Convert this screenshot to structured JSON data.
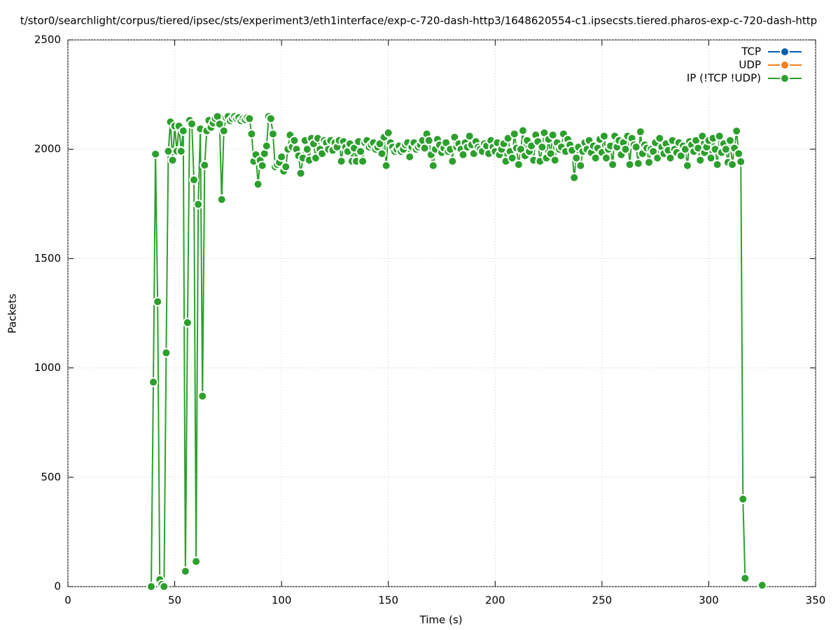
{
  "chart_data": {
    "type": "line",
    "title": "t/stor0/searchlight/corpus/tiered/ipsec/sts/experiment3/eth1interface/exp-c-720-dash-http3/1648620554-c1.ipsecsts.tiered.pharos-exp-c-720-dash-http",
    "x_label": "Time (s)",
    "y_label": "Packets",
    "xlim": [
      0,
      350
    ],
    "xticks": [
      0,
      50,
      100,
      150,
      200,
      250,
      300,
      350
    ],
    "ylim": [
      0,
      2500
    ],
    "yticks": [
      0,
      500,
      1000,
      1500,
      2000,
      2500
    ],
    "grid": true,
    "legend": "top-right",
    "x": [
      39,
      40,
      41,
      42,
      43,
      44,
      45,
      46,
      47,
      48,
      49,
      50,
      51,
      52,
      53,
      54,
      55,
      56,
      57,
      58,
      59,
      60,
      61,
      62,
      63,
      64,
      65,
      66,
      67,
      68,
      69,
      70,
      71,
      72,
      73,
      74,
      75,
      76,
      77,
      78,
      79,
      80,
      81,
      82,
      83,
      84,
      85,
      86,
      87,
      88,
      89,
      90,
      91,
      92,
      93,
      94,
      95,
      96,
      97,
      98,
      99,
      100,
      101,
      102,
      103,
      104,
      105,
      106,
      107,
      108,
      109,
      110,
      111,
      112,
      113,
      114,
      115,
      116,
      117,
      118,
      119,
      120,
      121,
      122,
      123,
      124,
      125,
      126,
      127,
      128,
      129,
      130,
      131,
      132,
      133,
      134,
      135,
      136,
      137,
      138,
      139,
      140,
      141,
      142,
      143,
      144,
      145,
      146,
      147,
      148,
      149,
      150,
      151,
      152,
      153,
      154,
      155,
      156,
      157,
      158,
      159,
      160,
      161,
      162,
      163,
      164,
      165,
      166,
      167,
      168,
      169,
      170,
      171,
      172,
      173,
      174,
      175,
      176,
      177,
      178,
      179,
      180,
      181,
      182,
      183,
      184,
      185,
      186,
      187,
      188,
      189,
      190,
      191,
      192,
      193,
      194,
      195,
      196,
      197,
      198,
      199,
      200,
      201,
      202,
      203,
      204,
      205,
      206,
      207,
      208,
      209,
      210,
      211,
      212,
      213,
      214,
      215,
      216,
      217,
      218,
      219,
      220,
      221,
      222,
      223,
      224,
      225,
      226,
      227,
      228,
      229,
      230,
      231,
      232,
      233,
      234,
      235,
      236,
      237,
      238,
      239,
      240,
      241,
      242,
      243,
      244,
      245,
      246,
      247,
      248,
      249,
      250,
      251,
      252,
      253,
      254,
      255,
      256,
      257,
      258,
      259,
      260,
      261,
      262,
      263,
      264,
      265,
      266,
      267,
      268,
      269,
      270,
      271,
      272,
      273,
      274,
      275,
      276,
      277,
      278,
      279,
      280,
      281,
      282,
      283,
      284,
      285,
      286,
      287,
      288,
      289,
      290,
      291,
      292,
      293,
      294,
      295,
      296,
      297,
      298,
      299,
      300,
      301,
      302,
      303,
      304,
      305,
      306,
      307,
      308,
      309,
      310,
      311,
      312,
      313,
      314,
      315,
      316,
      317,
      320,
      325
    ],
    "series": [
      {
        "name": "TCP",
        "color": "#0060ad",
        "values": [
          null,
          null,
          null,
          null,
          null,
          null,
          null,
          null,
          null,
          null,
          null,
          null,
          null,
          null,
          null,
          null,
          null,
          null,
          null,
          null,
          null,
          null,
          null,
          null,
          null,
          null,
          null,
          null,
          null,
          null,
          null,
          null,
          null,
          null,
          null,
          null,
          null,
          null,
          null,
          null,
          null,
          null,
          null,
          null,
          null,
          null,
          null,
          null,
          null,
          null,
          null,
          null,
          null,
          null,
          null,
          null,
          null,
          null,
          null,
          null,
          null,
          null,
          null,
          null,
          null,
          null,
          null,
          null,
          null,
          null,
          null,
          null,
          null,
          null,
          null,
          null,
          null,
          null,
          null,
          null,
          null,
          null,
          null,
          null,
          null,
          null,
          null,
          null,
          null,
          null,
          null,
          null,
          null,
          null,
          null,
          null,
          null,
          null,
          null,
          null,
          null,
          null,
          null,
          null,
          null,
          null,
          null,
          null,
          null,
          null,
          null,
          null,
          null,
          null,
          null,
          null,
          null,
          null,
          null,
          null,
          null,
          null,
          null,
          null,
          null,
          null,
          null,
          null,
          null,
          null,
          null,
          null,
          null,
          null,
          null,
          null,
          null,
          null,
          null,
          null,
          null,
          null,
          null,
          null,
          null,
          null,
          null,
          null,
          null,
          null,
          null,
          null,
          null,
          null,
          null,
          null,
          null,
          null,
          null,
          null,
          null,
          null,
          null,
          null,
          null,
          null,
          null,
          null,
          null,
          null,
          null,
          null,
          null,
          null,
          null,
          null,
          null,
          null,
          null,
          null,
          null,
          null,
          null,
          null,
          null,
          null,
          null,
          null,
          null,
          null,
          null,
          null,
          null,
          null,
          null,
          null,
          null,
          null,
          null,
          null,
          null,
          null,
          null,
          null,
          null,
          null,
          null,
          null,
          null,
          null,
          null,
          null,
          null,
          null,
          null,
          null,
          null,
          null,
          null,
          null,
          null,
          null,
          null,
          null,
          null,
          null,
          null,
          null,
          null,
          null,
          null,
          null,
          null,
          null,
          null,
          null,
          null,
          null,
          null,
          null,
          null,
          null,
          null,
          null,
          null,
          null,
          null,
          null,
          null,
          null,
          null,
          null,
          null,
          null,
          null,
          null,
          null,
          null,
          null,
          null,
          null,
          null,
          null,
          null,
          null,
          null,
          null,
          null,
          null,
          null,
          null,
          null,
          null,
          null,
          null,
          null,
          null,
          null,
          null,
          null,
          null
        ]
      },
      {
        "name": "UDP",
        "color": "#f0801e",
        "values": [
          null,
          null,
          null,
          null,
          null,
          null,
          null,
          null,
          null,
          null,
          null,
          null,
          null,
          null,
          null,
          null,
          null,
          null,
          null,
          null,
          null,
          null,
          null,
          null,
          null,
          null,
          null,
          null,
          null,
          null,
          null,
          null,
          null,
          null,
          null,
          null,
          null,
          null,
          null,
          null,
          null,
          null,
          null,
          null,
          null,
          null,
          null,
          null,
          null,
          null,
          null,
          null,
          null,
          null,
          null,
          null,
          null,
          null,
          null,
          null,
          null,
          null,
          null,
          null,
          null,
          null,
          null,
          null,
          null,
          null,
          null,
          null,
          null,
          null,
          null,
          null,
          null,
          null,
          null,
          null,
          null,
          null,
          null,
          null,
          null,
          null,
          null,
          null,
          null,
          null,
          null,
          null,
          null,
          null,
          null,
          null,
          null,
          null,
          null,
          null,
          null,
          null,
          null,
          null,
          null,
          null,
          null,
          null,
          null,
          null,
          null,
          null,
          null,
          null,
          null,
          null,
          null,
          null,
          null,
          null,
          null,
          null,
          null,
          null,
          null,
          null,
          null,
          null,
          null,
          null,
          null,
          null,
          null,
          null,
          null,
          null,
          null,
          null,
          null,
          null,
          null,
          null,
          null,
          null,
          null,
          null,
          null,
          null,
          null,
          null,
          null,
          null,
          null,
          null,
          null,
          null,
          null,
          null,
          null,
          null,
          null,
          null,
          null,
          null,
          null,
          null,
          null,
          null,
          null,
          null,
          null,
          null,
          null,
          null,
          null,
          null,
          null,
          null,
          null,
          null,
          null,
          null,
          null,
          null,
          null,
          null,
          null,
          null,
          null,
          null,
          null,
          null,
          null,
          null,
          null,
          null,
          null,
          null,
          null,
          null,
          null,
          null,
          null,
          null,
          null,
          null,
          null,
          null,
          null,
          null,
          null,
          null,
          null,
          null,
          null,
          null,
          null,
          null,
          null,
          null,
          null,
          null,
          null,
          null,
          null,
          null,
          null,
          null,
          null,
          null,
          null,
          null,
          null,
          null,
          null,
          null,
          null,
          null,
          null,
          null,
          null,
          null,
          null,
          null,
          null,
          null,
          null,
          null,
          null,
          null,
          null,
          null,
          null,
          null,
          null,
          null,
          null,
          null,
          null,
          null,
          null,
          null,
          null,
          null,
          null,
          null,
          null,
          null,
          null,
          null,
          null,
          null,
          null,
          null,
          null,
          null,
          null,
          null,
          null,
          null,
          null
        ]
      },
      {
        "name": "IP (!TCP  !UDP)",
        "color": "#2ca02c",
        "values": [
          0,
          935,
          1978,
          1303,
          32,
          10,
          0,
          1069,
          1991,
          2125,
          1950,
          2106,
          1991,
          2106,
          1991,
          2084,
          70,
          1207,
          2132,
          2116,
          1860,
          115,
          1748,
          2093,
          871,
          1927,
          2084,
          2132,
          2100,
          2120,
          2140,
          2150,
          2115,
          1770,
          2084,
          2145,
          2150,
          2130,
          2140,
          2150,
          2140,
          2145,
          2130,
          2140,
          2135,
          2145,
          2140,
          2070,
          1945,
          1975,
          1840,
          1950,
          1925,
          1980,
          2015,
          2150,
          2140,
          2070,
          1920,
          1930,
          1940,
          1965,
          1900,
          1920,
          2000,
          2065,
          2010,
          2040,
          2000,
          1970,
          1890,
          1960,
          2040,
          2000,
          1950,
          2050,
          2025,
          1960,
          2050,
          2000,
          1980,
          2040,
          2030,
          2000,
          2040,
          1995,
          2030,
          2010,
          2040,
          1945,
          2035,
          2010,
          1990,
          2025,
          1945,
          2005,
          1945,
          2035,
          1990,
          1945,
          2030,
          2040,
          2010,
          2020,
          2030,
          2000,
          2010,
          2025,
          1980,
          2055,
          1925,
          2075,
          2030,
          2010,
          1990,
          2000,
          2015,
          1990,
          2000,
          2020,
          2030,
          1965,
          2010,
          2030,
          2000,
          2010,
          2020,
          2040,
          2005,
          2070,
          2040,
          1975,
          1925,
          2000,
          2045,
          2020,
          1985,
          2005,
          2030,
          1990,
          2000,
          1945,
          2055,
          2010,
          2025,
          2000,
          1975,
          2030,
          2010,
          2060,
          2020,
          1980,
          2035,
          2010,
          2000,
          1990,
          2025,
          2015,
          1980,
          2040,
          2010,
          1990,
          2030,
          1975,
          2000,
          2025,
          1945,
          2050,
          1990,
          1960,
          2070,
          2005,
          1930,
          2000,
          2085,
          1970,
          2040,
          1990,
          2015,
          1950,
          2065,
          2035,
          1945,
          2010,
          2075,
          1960,
          2045,
          1980,
          2065,
          1950,
          2030,
          2000,
          2010,
          2070,
          1990,
          2045,
          2020,
          1995,
          1870,
          1960,
          2010,
          1925,
          1990,
          2030,
          2000,
          2040,
          1985,
          2015,
          1960,
          2005,
          2045,
          1985,
          2060,
          1960,
          2000,
          2015,
          1930,
          2060,
          2010,
          2040,
          1975,
          2030,
          2000,
          2060,
          1930,
          2050,
          2020,
          2010,
          1935,
          2080,
          1980,
          2020,
          2005,
          1940,
          2000,
          1990,
          2030,
          1960,
          2050,
          2010,
          1980,
          2025,
          1995,
          1960,
          2040,
          2000,
          1985,
          2030,
          1970,
          2015,
          2000,
          1925,
          2035,
          2020,
          1990,
          2040,
          2005,
          1950,
          2060,
          1985,
          2010,
          2040,
          1960,
          2050,
          2000,
          1930,
          2060,
          1985,
          2025,
          2000,
          1940,
          2040,
          1930,
          2005,
          2083,
          1980,
          1943,
          400,
          38,
          null,
          6
        ]
      }
    ]
  }
}
